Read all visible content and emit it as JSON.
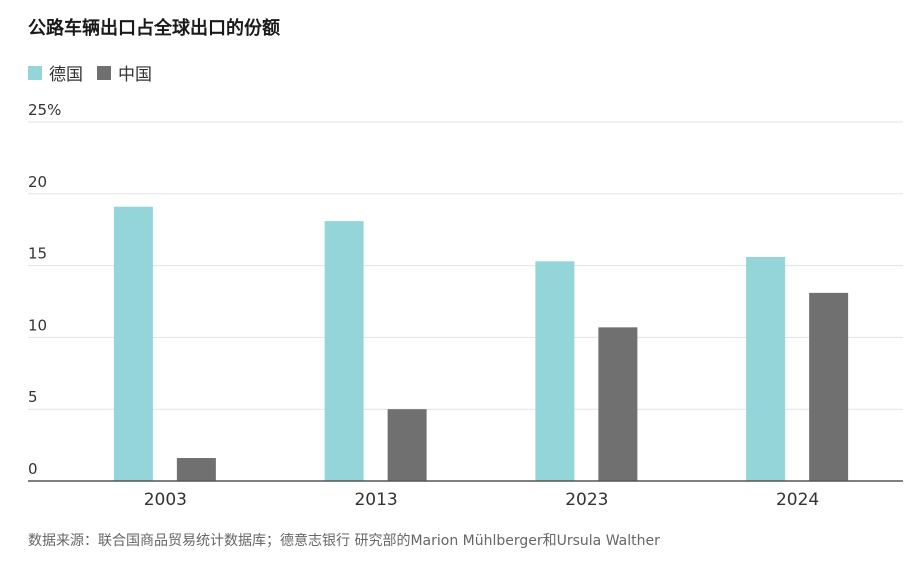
{
  "chart_data": {
    "type": "bar",
    "title": "公路车辆出口占全球出口的份额",
    "categories": [
      "2003",
      "2013",
      "2023",
      "2024"
    ],
    "series": [
      {
        "name": "德国",
        "color": "#93d5d9",
        "values": [
          19.1,
          18.1,
          15.3,
          15.6
        ]
      },
      {
        "name": "中国",
        "color": "#707070",
        "values": [
          1.6,
          5.0,
          10.7,
          13.1
        ]
      }
    ],
    "y_ticks": [
      {
        "value": 0,
        "label": "0"
      },
      {
        "value": 5,
        "label": "5"
      },
      {
        "value": 10,
        "label": "10"
      },
      {
        "value": 15,
        "label": "15"
      },
      {
        "value": 20,
        "label": "20"
      },
      {
        "value": 25,
        "label": "25%"
      }
    ],
    "ylim": [
      0,
      25
    ],
    "xlabel": "",
    "ylabel": "",
    "grid": true,
    "legend_position": "top-left",
    "source": "数据来源：联合国商品贸易统计数据库；德意志银行 研究部的Marion Mühlberger和Ursula Walther"
  }
}
